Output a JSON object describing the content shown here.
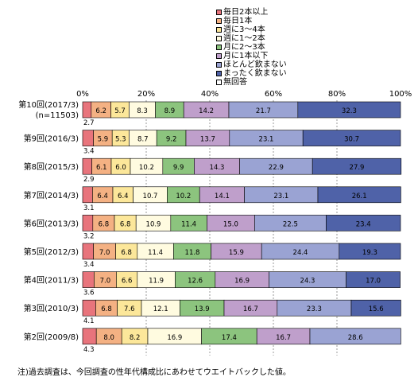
{
  "legend": [
    {
      "label": "毎日2本以上",
      "color": "#e8747c"
    },
    {
      "label": "毎日1本",
      "color": "#f4b183"
    },
    {
      "label": "週に3～4本",
      "color": "#fce79a"
    },
    {
      "label": "週に1～2本",
      "color": "#fffbe0"
    },
    {
      "label": "月に2～3本",
      "color": "#8cc47e"
    },
    {
      "label": "月に1本以下",
      "color": "#bf9fcb"
    },
    {
      "label": "ほとんど飲まない",
      "color": "#9aa3d3"
    },
    {
      "label": "まったく飲まない",
      "color": "#4f62a8"
    },
    {
      "label": "無回答",
      "color": "#ffffff"
    }
  ],
  "footnote": "注)過去調査は、今回調査の性年代構成比にあわせてウエイトバックした値。",
  "chart_data": {
    "type": "bar",
    "orientation": "horizontal",
    "stacked": "percent",
    "xlim": [
      0,
      100
    ],
    "x_ticks": [
      "0%",
      "20%",
      "40%",
      "60%",
      "80%",
      "100%"
    ],
    "categories": [
      "第10回(2017/3)",
      "第9回(2016/3)",
      "第8回(2015/3)",
      "第7回(2014/3)",
      "第6回(2013/3)",
      "第5回(2012/3)",
      "第4回(2011/3)",
      "第3回(2010/3)",
      "第2回(2009/8)"
    ],
    "sub_labels": [
      "(n=11503)",
      "",
      "",
      "",
      "",
      "",
      "",
      "",
      ""
    ],
    "series": [
      {
        "name": "毎日2本以上",
        "values": [
          2.7,
          3.4,
          2.9,
          3.1,
          3.2,
          3.4,
          3.6,
          4.1,
          4.3
        ]
      },
      {
        "name": "毎日1本",
        "values": [
          6.2,
          5.9,
          6.1,
          6.4,
          6.8,
          7.0,
          7.0,
          6.8,
          8.0
        ]
      },
      {
        "name": "週に3～4本",
        "values": [
          5.7,
          5.3,
          6.0,
          6.4,
          6.8,
          6.8,
          6.6,
          7.6,
          8.2
        ]
      },
      {
        "name": "週に1～2本",
        "values": [
          8.3,
          8.7,
          10.2,
          10.7,
          10.9,
          11.4,
          11.9,
          12.1,
          16.9
        ]
      },
      {
        "name": "月に2～3本",
        "values": [
          8.9,
          9.2,
          9.9,
          10.2,
          11.4,
          11.8,
          12.6,
          13.9,
          17.4
        ]
      },
      {
        "name": "月に1本以下",
        "values": [
          14.2,
          13.7,
          14.3,
          14.1,
          15.0,
          15.9,
          16.9,
          16.7,
          16.7
        ]
      },
      {
        "name": "ほとんど飲まない",
        "values": [
          21.7,
          23.1,
          22.9,
          23.1,
          22.5,
          24.4,
          24.3,
          23.3,
          28.6
        ]
      },
      {
        "name": "まったく飲まない",
        "values": [
          32.3,
          30.7,
          27.9,
          26.1,
          23.4,
          19.3,
          17.0,
          15.6,
          0
        ]
      },
      {
        "name": "無回答",
        "values": [
          0,
          0,
          0,
          0,
          0,
          0,
          0,
          0,
          0
        ]
      }
    ]
  }
}
